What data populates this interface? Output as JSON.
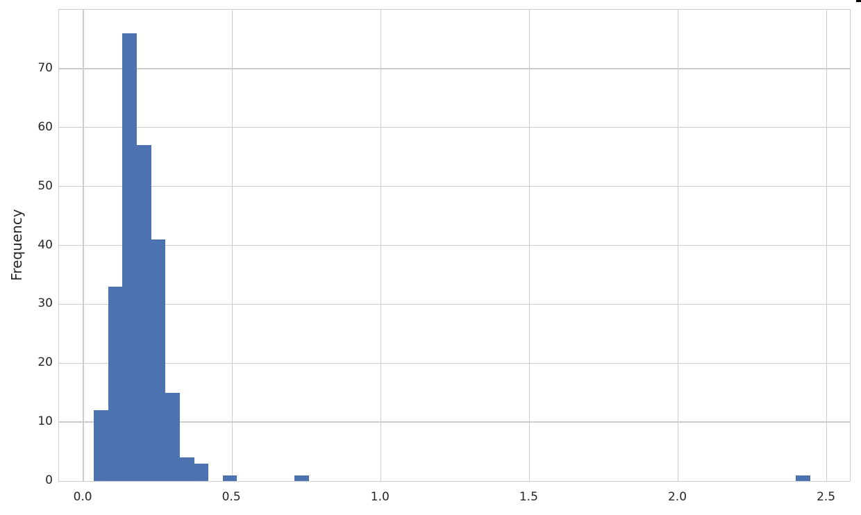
{
  "chart_data": {
    "type": "bar",
    "subtype": "histogram",
    "title": "",
    "xlabel": "",
    "ylabel": "Frequency",
    "grid": "on",
    "legend": "none",
    "xlim": [
      -0.082,
      2.578
    ],
    "ylim": [
      0,
      80
    ],
    "x_ticks": [
      0.0,
      0.5,
      1.0,
      1.5,
      2.0,
      2.5
    ],
    "x_tick_labels": [
      "0.0",
      "0.5",
      "1.0",
      "1.5",
      "2.0",
      "2.5"
    ],
    "y_ticks": [
      0,
      10,
      20,
      30,
      40,
      50,
      60,
      70
    ],
    "y_tick_labels": [
      "0",
      "10",
      "20",
      "30",
      "40",
      "50",
      "60",
      "70"
    ],
    "bin_start": 0.035,
    "bin_width": 0.0482,
    "counts": [
      12,
      33,
      76,
      57,
      41,
      15,
      4,
      3,
      0,
      1,
      0,
      0,
      0,
      0,
      1,
      0,
      0,
      0,
      0,
      0,
      0,
      0,
      0,
      0,
      0,
      0,
      0,
      0,
      0,
      0,
      0,
      0,
      0,
      0,
      0,
      0,
      0,
      0,
      0,
      0,
      0,
      0,
      0,
      0,
      0,
      0,
      0,
      0,
      0,
      1
    ],
    "bar_color": "#4c72b0",
    "grid_color": "#cccccc",
    "text_color": "#262626",
    "background_color": "#ffffff"
  },
  "artifact": {
    "description": "small black mark at top-right screen corner",
    "color": "#000000"
  }
}
